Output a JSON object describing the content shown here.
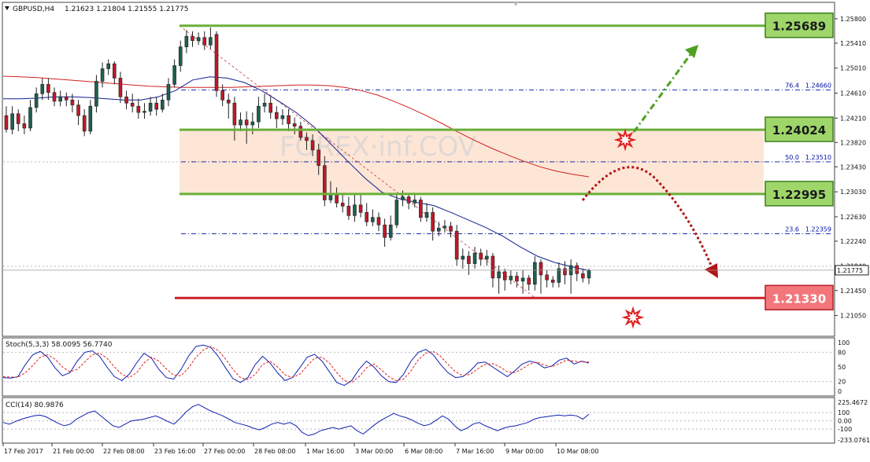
{
  "header": {
    "symbol_tf": "GBPUSD,H4",
    "ohlc": "1.21623 1.21804 1.21555 1.21775"
  },
  "watermark": "FOREX·inf.COV",
  "colors": {
    "bull": "#1f5f4f",
    "bear": "#c0182a",
    "level_green": "#6aaf38",
    "level_red": "#cc1f28",
    "fib_blue": "#0010a0",
    "ma_red": "#d02020",
    "ma_blue": "#10208f",
    "zone": "#fde6d6"
  },
  "chart_data": {
    "type": "candlestick",
    "price_axis": {
      "ylim": [
        1.2073,
        1.2605
      ],
      "ticks": [
        "1.25800",
        "1.25410",
        "1.25010",
        "1.24610",
        "1.24210",
        "1.23820",
        "1.23430",
        "1.23030",
        "1.22630",
        "1.22240",
        "1.21840",
        "1.21450",
        "1.21050"
      ],
      "current_price": "1.21775"
    },
    "time_axis": [
      "17 Feb 2017",
      "21 Feb 00:00",
      "22 Feb 08:00",
      "23 Feb 16:00",
      "27 Feb 00:00",
      "28 Feb 08:00",
      "1 Mar 16:00",
      "3 Mar 00:00",
      "6 Mar 08:00",
      "7 Mar 16:00",
      "9 Mar 00:00",
      "10 Mar 08:00"
    ],
    "candles": [
      [
        1.2425,
        1.2403,
        1.244,
        1.2398
      ],
      [
        1.2403,
        1.2428,
        1.244,
        1.2395
      ],
      [
        1.2428,
        1.2412,
        1.2435,
        1.24
      ],
      [
        1.2412,
        1.2405,
        1.2425,
        1.2395
      ],
      [
        1.2405,
        1.2438,
        1.245,
        1.24
      ],
      [
        1.2438,
        1.246,
        1.247,
        1.243
      ],
      [
        1.246,
        1.2475,
        1.2485,
        1.245
      ],
      [
        1.2475,
        1.2462,
        1.2485,
        1.245
      ],
      [
        1.2462,
        1.2448,
        1.247,
        1.244
      ],
      [
        1.2448,
        1.2455,
        1.2465,
        1.244
      ],
      [
        1.2455,
        1.245,
        1.2462,
        1.244
      ],
      [
        1.245,
        1.2442,
        1.246,
        1.243
      ],
      [
        1.2442,
        1.2425,
        1.245,
        1.241
      ],
      [
        1.2425,
        1.24,
        1.2435,
        1.2392
      ],
      [
        1.24,
        1.244,
        1.245,
        1.2395
      ],
      [
        1.244,
        1.248,
        1.249,
        1.243
      ],
      [
        1.248,
        1.25,
        1.251,
        1.247
      ],
      [
        1.25,
        1.2508,
        1.2515,
        1.249
      ],
      [
        1.2508,
        1.2485,
        1.2512,
        1.2475
      ],
      [
        1.2485,
        1.2455,
        1.2495,
        1.2445
      ],
      [
        1.2455,
        1.2445,
        1.2465,
        1.2435
      ],
      [
        1.2445,
        1.244,
        1.246,
        1.243
      ],
      [
        1.244,
        1.243,
        1.2452,
        1.242
      ],
      [
        1.243,
        1.2432,
        1.2445,
        1.242
      ],
      [
        1.2432,
        1.2445,
        1.2455,
        1.2425
      ],
      [
        1.2445,
        1.2435,
        1.2455,
        1.2425
      ],
      [
        1.2435,
        1.245,
        1.246,
        1.243
      ],
      [
        1.245,
        1.2475,
        1.2485,
        1.244
      ],
      [
        1.2475,
        1.2505,
        1.2515,
        1.247
      ],
      [
        1.2505,
        1.2535,
        1.2545,
        1.2495
      ],
      [
        1.2535,
        1.2552,
        1.2562,
        1.2525
      ],
      [
        1.2552,
        1.2545,
        1.256,
        1.2535
      ],
      [
        1.2545,
        1.255,
        1.2558,
        1.2538
      ],
      [
        1.255,
        1.2538,
        1.256,
        1.253
      ],
      [
        1.2538,
        1.255,
        1.2566,
        1.2532
      ],
      [
        1.2555,
        1.2465,
        1.256,
        1.2455
      ],
      [
        1.2465,
        1.245,
        1.2475,
        1.244
      ],
      [
        1.245,
        1.2445,
        1.246,
        1.242
      ],
      [
        1.2445,
        1.241,
        1.2455,
        1.2385
      ],
      [
        1.241,
        1.2418,
        1.243,
        1.24
      ],
      [
        1.2418,
        1.241,
        1.2432,
        1.238
      ],
      [
        1.241,
        1.2415,
        1.243,
        1.2395
      ],
      [
        1.2415,
        1.244,
        1.2455,
        1.2405
      ],
      [
        1.244,
        1.2445,
        1.246,
        1.243
      ],
      [
        1.2445,
        1.243,
        1.2455,
        1.242
      ],
      [
        1.243,
        1.242,
        1.244,
        1.2405
      ],
      [
        1.242,
        1.2425,
        1.2435,
        1.241
      ],
      [
        1.2425,
        1.2412,
        1.2435,
        1.24
      ],
      [
        1.2412,
        1.2408,
        1.2422,
        1.2395
      ],
      [
        1.2408,
        1.239,
        1.2415,
        1.2385
      ],
      [
        1.239,
        1.2385,
        1.2398,
        1.237
      ],
      [
        1.2385,
        1.237,
        1.2395,
        1.236
      ],
      [
        1.237,
        1.2345,
        1.238,
        1.233
      ],
      [
        1.2345,
        1.229,
        1.236,
        1.228
      ],
      [
        1.229,
        1.23,
        1.232,
        1.2285
      ],
      [
        1.23,
        1.2285,
        1.231,
        1.2278
      ],
      [
        1.2285,
        1.228,
        1.2298,
        1.227
      ],
      [
        1.228,
        1.2265,
        1.2295,
        1.2258
      ],
      [
        1.2265,
        1.2282,
        1.23,
        1.2255
      ],
      [
        1.2282,
        1.227,
        1.23,
        1.2262
      ],
      [
        1.227,
        1.2255,
        1.2285,
        1.2248
      ],
      [
        1.2255,
        1.2262,
        1.2275,
        1.2248
      ],
      [
        1.2262,
        1.225,
        1.227,
        1.224
      ],
      [
        1.225,
        1.223,
        1.226,
        1.2215
      ],
      [
        1.223,
        1.225,
        1.2265,
        1.2225
      ],
      [
        1.225,
        1.229,
        1.23,
        1.2245
      ],
      [
        1.229,
        1.2295,
        1.2305,
        1.228
      ],
      [
        1.2295,
        1.2285,
        1.23,
        1.2275
      ],
      [
        1.2285,
        1.229,
        1.2298,
        1.2278
      ],
      [
        1.229,
        1.2262,
        1.2295,
        1.2255
      ],
      [
        1.2262,
        1.227,
        1.2285,
        1.2255
      ],
      [
        1.227,
        1.224,
        1.2278,
        1.2225
      ],
      [
        1.224,
        1.2245,
        1.2255,
        1.2232
      ],
      [
        1.2245,
        1.2248,
        1.2258,
        1.2238
      ],
      [
        1.2248,
        1.224,
        1.2255,
        1.223
      ],
      [
        1.224,
        1.2195,
        1.225,
        1.2185
      ],
      [
        1.2195,
        1.22,
        1.2212,
        1.218
      ],
      [
        1.22,
        1.2188,
        1.2208,
        1.217
      ],
      [
        1.2188,
        1.2205,
        1.2215,
        1.218
      ],
      [
        1.2205,
        1.2195,
        1.2212,
        1.2185
      ],
      [
        1.2195,
        1.22,
        1.221,
        1.2185
      ],
      [
        1.22,
        1.2165,
        1.2205,
        1.215
      ],
      [
        1.2165,
        1.2175,
        1.2185,
        1.214
      ],
      [
        1.2175,
        1.2162,
        1.218,
        1.2145
      ],
      [
        1.2162,
        1.2168,
        1.2178,
        1.2155
      ],
      [
        1.2168,
        1.216,
        1.2175,
        1.215
      ],
      [
        1.216,
        1.2165,
        1.2178,
        1.214
      ],
      [
        1.2165,
        1.2155,
        1.217,
        1.2145
      ],
      [
        1.2155,
        1.219,
        1.22,
        1.2145
      ],
      [
        1.219,
        1.217,
        1.2195,
        1.214
      ],
      [
        1.217,
        1.2162,
        1.2178,
        1.215
      ],
      [
        1.2162,
        1.2158,
        1.2168,
        1.215
      ],
      [
        1.2158,
        1.218,
        1.219,
        1.215
      ],
      [
        1.218,
        1.217,
        1.2192,
        1.2155
      ],
      [
        1.217,
        1.2185,
        1.2195,
        1.214
      ],
      [
        1.2185,
        1.2172,
        1.219,
        1.216
      ],
      [
        1.2172,
        1.2165,
        1.218,
        1.2158
      ],
      [
        1.2165,
        1.2177,
        1.218,
        1.2155
      ]
    ],
    "ma_slow": [
      1.2488,
      1.2487,
      1.2486,
      1.2484,
      1.2482,
      1.248,
      1.2478,
      1.2476,
      1.2474,
      1.2472,
      1.2471,
      1.247,
      1.247,
      1.247,
      1.247,
      1.2471,
      1.2472,
      1.2473,
      1.2474,
      1.2474,
      1.2473,
      1.247,
      1.2465,
      1.2458,
      1.2448,
      1.2437,
      1.2425,
      1.2412,
      1.2398,
      1.2385,
      1.2373,
      1.2362,
      1.2352,
      1.2343,
      1.2336,
      1.2331,
      1.2327
    ],
    "ma_fast": [
      1.2452,
      1.2452,
      1.2453,
      1.2455,
      1.2455,
      1.2454,
      1.2452,
      1.245,
      1.245,
      1.2455,
      1.2465,
      1.2482,
      1.2487,
      1.2485,
      1.2478,
      1.2465,
      1.2448,
      1.243,
      1.2408,
      1.238,
      1.2352,
      1.2325,
      1.2302,
      1.2292,
      1.2286,
      1.2281,
      1.227,
      1.2258,
      1.2246,
      1.2232,
      1.2215,
      1.22,
      1.219,
      1.2183,
      1.2177
    ],
    "levels": [
      {
        "label": "1.25689",
        "value": 1.25689,
        "color": "green"
      },
      {
        "label": "1.24024",
        "value": 1.24024,
        "color": "green"
      },
      {
        "label": "1.22995",
        "value": 1.22995,
        "color": "green"
      },
      {
        "label": "1.21330",
        "value": 1.2133,
        "color": "red"
      }
    ],
    "fib": [
      {
        "ratio": "76.4",
        "price": "1.24660",
        "value": 1.2466
      },
      {
        "ratio": "50.0",
        "price": "1.23510",
        "value": 1.2351
      },
      {
        "ratio": "23.6",
        "price": "1.22359",
        "value": 1.22359
      }
    ],
    "stoch": {
      "label": "Stoch(5,3,3) 58.0095 56.7740",
      "ticks": [
        "100",
        "80",
        "50",
        "20",
        "0"
      ],
      "main": [
        28,
        27,
        30,
        55,
        75,
        82,
        70,
        48,
        32,
        38,
        62,
        80,
        83,
        72,
        50,
        30,
        22,
        35,
        58,
        78,
        68,
        45,
        28,
        25,
        45,
        72,
        92,
        95,
        90,
        72,
        48,
        26,
        18,
        28,
        55,
        72,
        58,
        38,
        22,
        28,
        48,
        70,
        76,
        62,
        40,
        18,
        12,
        22,
        45,
        62,
        50,
        32,
        20,
        18,
        35,
        62,
        80,
        86,
        75,
        55,
        38,
        28,
        30,
        42,
        58,
        60,
        50,
        40,
        30,
        42,
        56,
        62,
        58,
        48,
        52,
        64,
        68,
        56,
        62,
        58
      ],
      "signal": [
        30,
        29,
        29,
        38,
        53,
        70,
        75,
        66,
        50,
        40,
        45,
        60,
        75,
        78,
        68,
        50,
        35,
        28,
        38,
        58,
        70,
        62,
        46,
        33,
        32,
        48,
        70,
        85,
        92,
        84,
        66,
        45,
        28,
        24,
        35,
        55,
        62,
        50,
        34,
        28,
        35,
        52,
        68,
        70,
        58,
        38,
        22,
        18,
        30,
        48,
        56,
        44,
        30,
        22,
        25,
        42,
        65,
        78,
        82,
        72,
        55,
        40,
        32,
        35,
        46,
        55,
        57,
        50,
        40,
        38,
        46,
        56,
        60,
        54,
        50,
        57,
        64,
        62,
        60,
        60
      ]
    },
    "cci": {
      "label": "CCI(14) 80.9876",
      "ticks": [
        "225.4672",
        "100",
        "0.00",
        "-100",
        "-233.0761"
      ],
      "values": [
        -20,
        -40,
        -10,
        20,
        40,
        60,
        70,
        50,
        10,
        -30,
        -60,
        -40,
        20,
        60,
        100,
        120,
        60,
        0,
        -60,
        -80,
        -40,
        0,
        10,
        20,
        40,
        60,
        30,
        -10,
        -40,
        30,
        110,
        170,
        200,
        160,
        120,
        90,
        60,
        20,
        -20,
        -40,
        -60,
        -90,
        -110,
        -80,
        -40,
        -20,
        -40,
        -20,
        -60,
        -140,
        -180,
        -160,
        -120,
        -100,
        -80,
        -100,
        -80,
        -60,
        -120,
        -160,
        -100,
        -40,
        10,
        50,
        90,
        60,
        40,
        10,
        -30,
        -60,
        -40,
        10,
        60,
        20,
        -60,
        -120,
        -90,
        -40,
        -20,
        -60,
        -90,
        -120,
        -90,
        -70,
        -60,
        -40,
        -20,
        20,
        40,
        50,
        60,
        70,
        60,
        70,
        60,
        20,
        81
      ]
    },
    "annotations": {
      "resistance_arrow": "up-green-dashdot",
      "decline_arrow": "down-red-dotted"
    }
  }
}
